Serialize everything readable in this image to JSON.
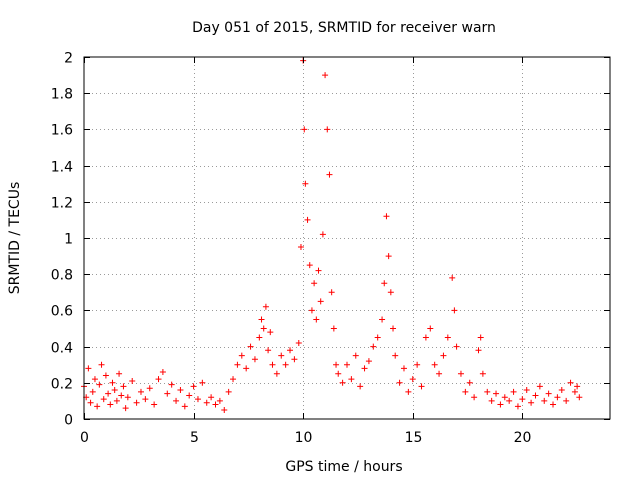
{
  "chart_data": {
    "type": "scatter",
    "title": "Day 051 of 2015, SRMTID for receiver warn",
    "xlabel": "GPS time / hours",
    "ylabel": "SRMTID / TECUs",
    "xlim": [
      0,
      24
    ],
    "ylim": [
      0,
      2
    ],
    "xticks": [
      0,
      5,
      10,
      15,
      20
    ],
    "xtick_labels": [
      "0",
      "5",
      "10",
      "15",
      "20"
    ],
    "yticks": [
      0,
      0.2,
      0.4,
      0.6,
      0.8,
      1,
      1.2,
      1.4,
      1.6,
      1.8,
      2
    ],
    "ytick_labels": [
      "0",
      "0.2",
      "0.4",
      "0.6",
      "0.8",
      "1",
      "1.2",
      "1.4",
      "1.6",
      "1.8",
      "2"
    ],
    "grid": true,
    "marker": "+",
    "color": "#ff0000",
    "series": [
      {
        "name": "warn",
        "points": [
          [
            0.0,
            0.18
          ],
          [
            0.1,
            0.12
          ],
          [
            0.2,
            0.28
          ],
          [
            0.3,
            0.09
          ],
          [
            0.4,
            0.15
          ],
          [
            0.5,
            0.22
          ],
          [
            0.6,
            0.07
          ],
          [
            0.7,
            0.19
          ],
          [
            0.8,
            0.3
          ],
          [
            0.9,
            0.11
          ],
          [
            1.0,
            0.24
          ],
          [
            1.1,
            0.14
          ],
          [
            1.2,
            0.08
          ],
          [
            1.3,
            0.2
          ],
          [
            1.4,
            0.16
          ],
          [
            1.5,
            0.1
          ],
          [
            1.6,
            0.25
          ],
          [
            1.7,
            0.13
          ],
          [
            1.8,
            0.18
          ],
          [
            1.9,
            0.06
          ],
          [
            2.0,
            0.12
          ],
          [
            2.2,
            0.21
          ],
          [
            2.4,
            0.09
          ],
          [
            2.6,
            0.15
          ],
          [
            2.8,
            0.11
          ],
          [
            3.0,
            0.17
          ],
          [
            3.2,
            0.08
          ],
          [
            3.4,
            0.22
          ],
          [
            3.6,
            0.26
          ],
          [
            3.8,
            0.14
          ],
          [
            4.0,
            0.19
          ],
          [
            4.2,
            0.1
          ],
          [
            4.4,
            0.16
          ],
          [
            4.6,
            0.07
          ],
          [
            4.8,
            0.13
          ],
          [
            5.0,
            0.18
          ],
          [
            5.2,
            0.11
          ],
          [
            5.4,
            0.2
          ],
          [
            5.6,
            0.09
          ],
          [
            5.8,
            0.12
          ],
          [
            6.0,
            0.08
          ],
          [
            6.2,
            0.1
          ],
          [
            6.4,
            0.05
          ],
          [
            6.6,
            0.15
          ],
          [
            6.8,
            0.22
          ],
          [
            7.0,
            0.3
          ],
          [
            7.2,
            0.35
          ],
          [
            7.4,
            0.28
          ],
          [
            7.6,
            0.4
          ],
          [
            7.8,
            0.33
          ],
          [
            8.0,
            0.45
          ],
          [
            8.1,
            0.55
          ],
          [
            8.2,
            0.5
          ],
          [
            8.3,
            0.62
          ],
          [
            8.4,
            0.38
          ],
          [
            8.5,
            0.48
          ],
          [
            8.6,
            0.3
          ],
          [
            8.8,
            0.25
          ],
          [
            9.0,
            0.35
          ],
          [
            9.2,
            0.3
          ],
          [
            9.4,
            0.38
          ],
          [
            9.6,
            0.33
          ],
          [
            9.8,
            0.42
          ],
          [
            9.9,
            0.95
          ],
          [
            10.0,
            1.98
          ],
          [
            10.05,
            1.6
          ],
          [
            10.1,
            1.3
          ],
          [
            10.2,
            1.1
          ],
          [
            10.3,
            0.85
          ],
          [
            10.4,
            0.6
          ],
          [
            10.5,
            0.75
          ],
          [
            10.6,
            0.55
          ],
          [
            10.7,
            0.82
          ],
          [
            10.8,
            0.65
          ],
          [
            10.9,
            1.02
          ],
          [
            11.0,
            1.9
          ],
          [
            11.1,
            1.6
          ],
          [
            11.2,
            1.35
          ],
          [
            11.3,
            0.7
          ],
          [
            11.4,
            0.5
          ],
          [
            11.5,
            0.3
          ],
          [
            11.6,
            0.25
          ],
          [
            11.8,
            0.2
          ],
          [
            12.0,
            0.3
          ],
          [
            12.2,
            0.22
          ],
          [
            12.4,
            0.35
          ],
          [
            12.6,
            0.18
          ],
          [
            12.8,
            0.28
          ],
          [
            13.0,
            0.32
          ],
          [
            13.2,
            0.4
          ],
          [
            13.4,
            0.45
          ],
          [
            13.6,
            0.55
          ],
          [
            13.7,
            0.75
          ],
          [
            13.8,
            1.12
          ],
          [
            13.9,
            0.9
          ],
          [
            14.0,
            0.7
          ],
          [
            14.1,
            0.5
          ],
          [
            14.2,
            0.35
          ],
          [
            14.4,
            0.2
          ],
          [
            14.6,
            0.28
          ],
          [
            14.8,
            0.15
          ],
          [
            15.0,
            0.22
          ],
          [
            15.2,
            0.3
          ],
          [
            15.4,
            0.18
          ],
          [
            15.6,
            0.45
          ],
          [
            15.8,
            0.5
          ],
          [
            16.0,
            0.3
          ],
          [
            16.2,
            0.25
          ],
          [
            16.4,
            0.35
          ],
          [
            16.6,
            0.45
          ],
          [
            16.8,
            0.78
          ],
          [
            16.9,
            0.6
          ],
          [
            17.0,
            0.4
          ],
          [
            17.2,
            0.25
          ],
          [
            17.4,
            0.15
          ],
          [
            17.6,
            0.2
          ],
          [
            17.8,
            0.12
          ],
          [
            18.0,
            0.38
          ],
          [
            18.1,
            0.45
          ],
          [
            18.2,
            0.25
          ],
          [
            18.4,
            0.15
          ],
          [
            18.6,
            0.1
          ],
          [
            18.8,
            0.14
          ],
          [
            19.0,
            0.08
          ],
          [
            19.2,
            0.12
          ],
          [
            19.4,
            0.1
          ],
          [
            19.6,
            0.15
          ],
          [
            19.8,
            0.07
          ],
          [
            20.0,
            0.11
          ],
          [
            20.2,
            0.16
          ],
          [
            20.4,
            0.09
          ],
          [
            20.6,
            0.13
          ],
          [
            20.8,
            0.18
          ],
          [
            21.0,
            0.1
          ],
          [
            21.2,
            0.14
          ],
          [
            21.4,
            0.08
          ],
          [
            21.6,
            0.12
          ],
          [
            21.8,
            0.16
          ],
          [
            22.0,
            0.1
          ],
          [
            22.2,
            0.2
          ],
          [
            22.4,
            0.15
          ],
          [
            22.5,
            0.18
          ],
          [
            22.6,
            0.12
          ]
        ]
      }
    ]
  }
}
